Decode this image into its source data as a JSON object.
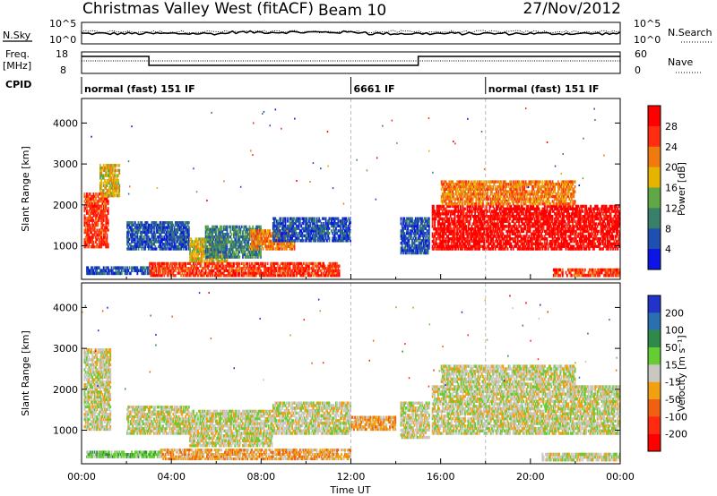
{
  "header": {
    "station": "Christmas Valley West (fitACF)",
    "beam": "Beam 10",
    "date": "27/Nov/2012"
  },
  "noise_panel": {
    "left_label": "N.Sky",
    "right_label": "N.Search",
    "y_ticks": [
      "10^5",
      "10^0"
    ]
  },
  "freq_panel": {
    "left_label_1": "Freq.",
    "left_label_2": "[MHz]",
    "left_ticks": [
      "18",
      "8"
    ],
    "right_ticks": [
      "60",
      "0"
    ],
    "right_label": "Nave"
  },
  "cpid": {
    "label": "CPID",
    "segments": [
      {
        "name": "normal (fast) 151 IF",
        "start_h": 0,
        "end_h": 12
      },
      {
        "name": "6661 IF",
        "start_h": 12,
        "end_h": 18
      },
      {
        "name": "normal (fast) 151 IF",
        "start_h": 18,
        "end_h": 24
      }
    ]
  },
  "x_axis": {
    "label": "Time UT",
    "ticks": [
      "00:00",
      "04:00",
      "08:00",
      "12:00",
      "16:00",
      "20:00",
      "00:00"
    ]
  },
  "power_colorbar": {
    "label": "Power [dB]",
    "ticks": [
      "4",
      "8",
      "12",
      "16",
      "20",
      "24",
      "28"
    ],
    "colors": [
      "#0b15e6",
      "#1f4fb0",
      "#3a7f6a",
      "#5fa845",
      "#e6b400",
      "#f07a10",
      "#ff2e10",
      "#ff0000"
    ]
  },
  "velocity_colorbar": {
    "label": "Velocity [m s⁻¹]",
    "ticks": [
      "200",
      "100",
      "50",
      "15",
      "-15",
      "-50",
      "-100",
      "-200"
    ],
    "colors": [
      "#2233cc",
      "#2a6fb0",
      "#2f8a4a",
      "#66cc33",
      "#c8c8c0",
      "#f0a010",
      "#f06010",
      "#ff2a10",
      "#ff0000"
    ]
  },
  "chart_data": [
    {
      "type": "heatmap",
      "name": "power",
      "ylabel": "Slant Range [km]",
      "xlabel": "",
      "y_ticks": [
        1000,
        2000,
        3000,
        4000
      ],
      "ylim": [
        180,
        4600
      ],
      "xlim_hours": [
        0,
        24
      ],
      "regions": [
        {
          "t0": 0.1,
          "t1": 1.2,
          "r0": 950,
          "r1": 2300,
          "level": 6
        },
        {
          "t0": 0.8,
          "t1": 1.7,
          "r0": 2200,
          "r1": 3000,
          "level": 4
        },
        {
          "t0": 2.0,
          "t1": 4.8,
          "r0": 900,
          "r1": 1600,
          "level": 1
        },
        {
          "t0": 4.8,
          "t1": 6.5,
          "r0": 600,
          "r1": 1200,
          "level": 4
        },
        {
          "t0": 5.5,
          "t1": 8.0,
          "r0": 700,
          "r1": 1500,
          "level": 2
        },
        {
          "t0": 7.5,
          "t1": 9.5,
          "r0": 900,
          "r1": 1400,
          "level": 5
        },
        {
          "t0": 8.5,
          "t1": 12.0,
          "r0": 1100,
          "r1": 1700,
          "level": 1
        },
        {
          "t0": 3.0,
          "t1": 11.5,
          "r0": 250,
          "r1": 600,
          "level": 6
        },
        {
          "t0": 0.2,
          "t1": 3.0,
          "r0": 300,
          "r1": 500,
          "level": 1
        },
        {
          "t0": 14.2,
          "t1": 15.5,
          "r0": 800,
          "r1": 1700,
          "level": 1
        },
        {
          "t0": 15.6,
          "t1": 24.0,
          "r0": 900,
          "r1": 2000,
          "level": 7
        },
        {
          "t0": 16.0,
          "t1": 22.0,
          "r0": 2000,
          "r1": 2600,
          "level": 5
        },
        {
          "t0": 21.0,
          "t1": 24.0,
          "r0": 250,
          "r1": 450,
          "level": 6
        }
      ]
    },
    {
      "type": "heatmap",
      "name": "velocity",
      "ylabel": "Slant Range [km]",
      "xlabel": "Time UT",
      "y_ticks": [
        1000,
        2000,
        3000,
        4000
      ],
      "ylim": [
        180,
        4600
      ],
      "xlim_hours": [
        0,
        24
      ],
      "regions": [
        {
          "t0": 0.1,
          "t1": 1.3,
          "r0": 1000,
          "r1": 3000,
          "level": 4
        },
        {
          "t0": 2.0,
          "t1": 4.8,
          "r0": 900,
          "r1": 1600,
          "level": 4
        },
        {
          "t0": 4.8,
          "t1": 8.5,
          "r0": 600,
          "r1": 1500,
          "level": 4
        },
        {
          "t0": 8.5,
          "t1": 12.0,
          "r0": 900,
          "r1": 1700,
          "level": 4
        },
        {
          "t0": 12.0,
          "t1": 14.0,
          "r0": 1000,
          "r1": 1350,
          "level": 5
        },
        {
          "t0": 3.5,
          "t1": 12.0,
          "r0": 280,
          "r1": 550,
          "level": 5
        },
        {
          "t0": 0.2,
          "t1": 3.5,
          "r0": 330,
          "r1": 500,
          "level": 3
        },
        {
          "t0": 14.2,
          "t1": 15.5,
          "r0": 800,
          "r1": 1700,
          "level": 4
        },
        {
          "t0": 15.6,
          "t1": 24.0,
          "r0": 900,
          "r1": 2100,
          "level": 4
        },
        {
          "t0": 16.0,
          "t1": 22.0,
          "r0": 2100,
          "r1": 2600,
          "level": 4
        },
        {
          "t0": 20.5,
          "t1": 24.0,
          "r0": 250,
          "r1": 450,
          "level": 4
        }
      ]
    }
  ]
}
